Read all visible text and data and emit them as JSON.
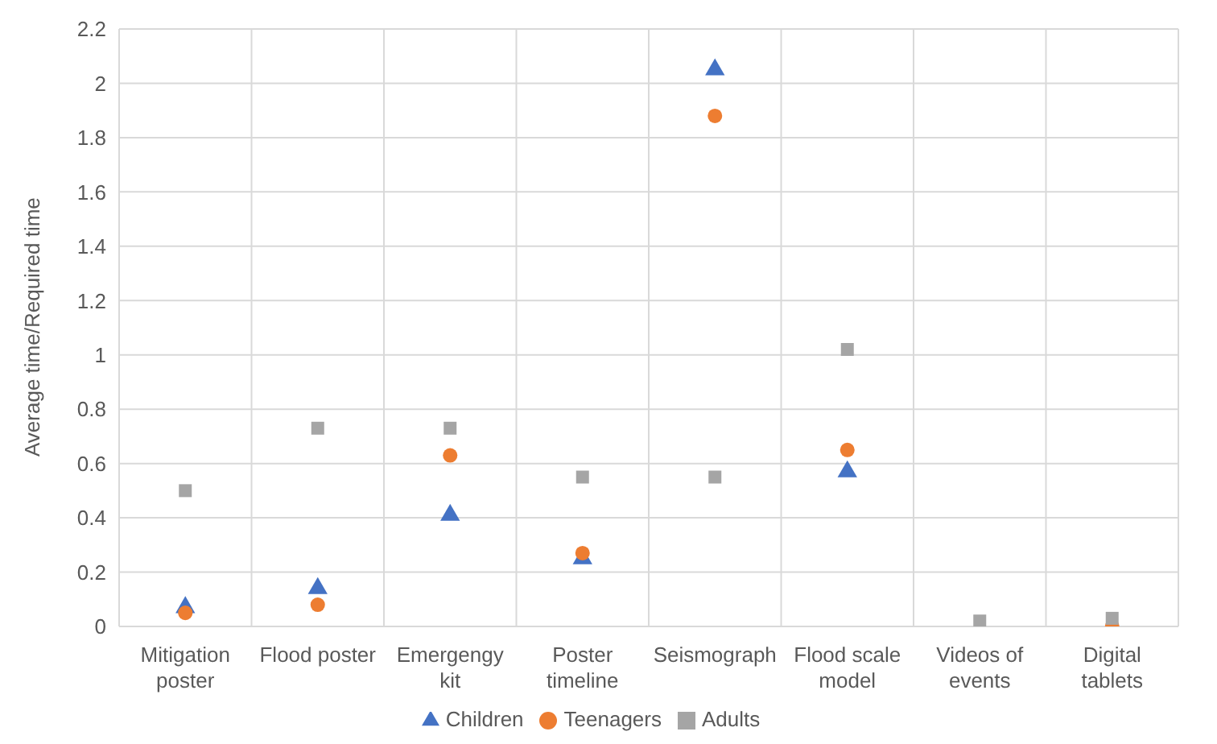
{
  "chart_data": {
    "type": "scatter",
    "ylabel": "Average time/Required time",
    "categories": [
      "Mitigation poster",
      "Flood poster",
      "Emergengy kit",
      "Poster timeline",
      "Seismograph",
      "Flood scale model",
      "Videos of events",
      "Digital tablets"
    ],
    "series": [
      {
        "name": "Children",
        "color": "#4472c4",
        "marker": "triangle",
        "values": [
          0.07,
          0.14,
          0.41,
          0.25,
          2.05,
          0.57,
          null,
          null
        ]
      },
      {
        "name": "Teenagers",
        "color": "#ed7d31",
        "marker": "circle",
        "values": [
          0.05,
          0.08,
          0.63,
          0.27,
          1.88,
          0.65,
          null,
          0
        ]
      },
      {
        "name": "Adults",
        "color": "#a5a5a5",
        "marker": "square",
        "values": [
          0.5,
          0.73,
          0.73,
          0.55,
          0.55,
          1.02,
          0.02,
          0.03
        ]
      }
    ],
    "ylim": [
      0,
      2.2
    ],
    "yticks": [
      0,
      0.2,
      0.4,
      0.6,
      0.8,
      1,
      1.2,
      1.4,
      1.6,
      1.8,
      2,
      2.2
    ],
    "grid": true,
    "legend": "bottom"
  }
}
